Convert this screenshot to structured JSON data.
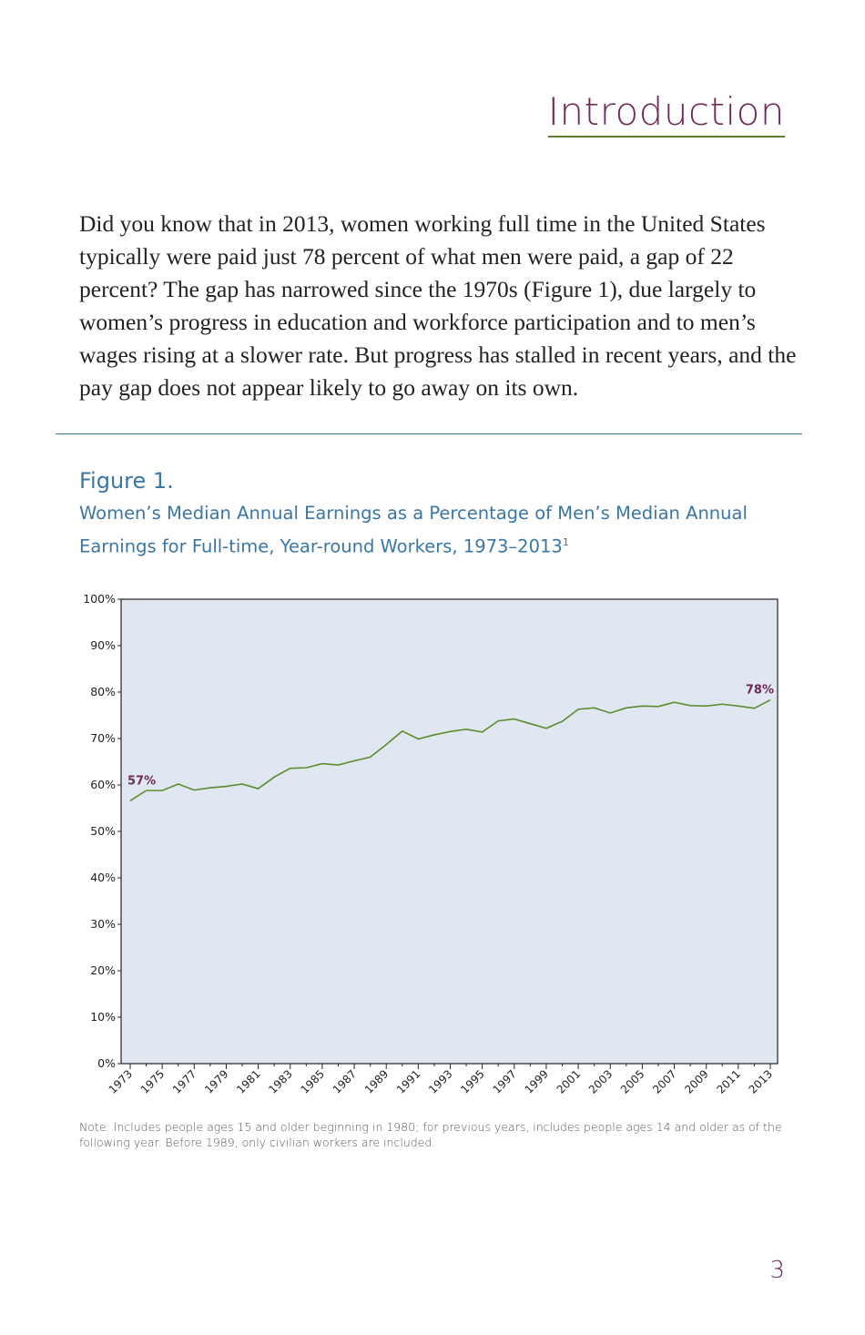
{
  "header": {
    "title": "Introduction"
  },
  "body": {
    "paragraph": "Did you know that in 2013, women working full time in the United States typically were paid just 78 percent of what men were paid, a gap of 22 percent? The gap has narrowed since the 1970s (Figure 1), due largely to women’s progress in education and workforce participation and to men’s wages rising at a slower rate. But progress has stalled in recent years, and the pay gap does not appear likely to go away on its own."
  },
  "figure": {
    "label": "Figure 1.",
    "title": "Women’s Median Annual Earnings as a Percentage of Men’s Median Annual Earnings for Full-time, Year-round Workers, 1973–2013",
    "footnote_marker": "1",
    "note": "Note: Includes people ages 15 and older beginning in 1980; for previous years, includes people ages 14 and older as of the following year. Before 1989, only civilian workers are included."
  },
  "chart_data": {
    "type": "line",
    "title": "",
    "xlabel": "",
    "ylabel": "",
    "ylim": [
      0,
      100
    ],
    "y_ticks": [
      "0%",
      "10%",
      "20%",
      "30%",
      "40%",
      "50%",
      "60%",
      "70%",
      "80%",
      "90%",
      "100%"
    ],
    "x_tick_labels": [
      "1973",
      "1975",
      "1977",
      "1979",
      "1981",
      "1983",
      "1985",
      "1987",
      "1989",
      "1991",
      "1993",
      "1995",
      "1997",
      "1999",
      "2001",
      "2003",
      "2005",
      "2007",
      "2009",
      "2011",
      "2013"
    ],
    "x": [
      1973,
      1974,
      1975,
      1976,
      1977,
      1978,
      1979,
      1980,
      1981,
      1982,
      1983,
      1984,
      1985,
      1986,
      1987,
      1988,
      1989,
      1990,
      1991,
      1992,
      1993,
      1994,
      1995,
      1996,
      1997,
      1998,
      1999,
      2000,
      2001,
      2002,
      2003,
      2004,
      2005,
      2006,
      2007,
      2008,
      2009,
      2010,
      2011,
      2012,
      2013
    ],
    "values": [
      56.6,
      58.8,
      58.8,
      60.2,
      58.9,
      59.4,
      59.7,
      60.2,
      59.2,
      61.7,
      63.6,
      63.7,
      64.6,
      64.3,
      65.2,
      66.0,
      68.7,
      71.6,
      69.9,
      70.8,
      71.5,
      72.0,
      71.4,
      73.8,
      74.2,
      73.2,
      72.2,
      73.7,
      76.3,
      76.6,
      75.5,
      76.6,
      77.0,
      76.9,
      77.8,
      77.1,
      77.0,
      77.4,
      77.0,
      76.5,
      78.3
    ],
    "annotations": [
      {
        "x": 1973,
        "label": "57%"
      },
      {
        "x": 2013,
        "label": "78%"
      }
    ],
    "line_color": "#5b8c2e",
    "plot_background": "#e0e7f0",
    "annotation_color": "#6e2a5a",
    "grid": false,
    "legend": "none"
  },
  "footer": {
    "page_number": "3"
  }
}
